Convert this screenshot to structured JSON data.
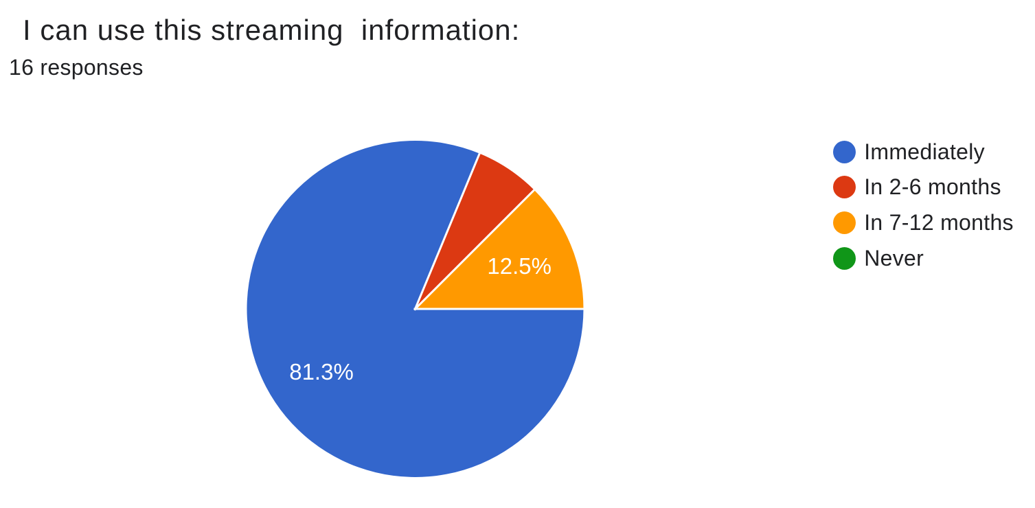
{
  "chart_data": {
    "type": "pie",
    "title": "I can use this streaming  information:",
    "subtitle": "16 responses",
    "total_responses": 16,
    "categories": [
      "Immediately",
      "In 2-6 months",
      "In 7-12 months",
      "Never"
    ],
    "values": [
      13,
      1,
      2,
      0
    ],
    "percents": [
      81.3,
      6.3,
      12.5,
      0
    ],
    "slice_labels": [
      "81.3%",
      "",
      "12.5%",
      ""
    ],
    "colors": [
      "#3366cc",
      "#dc3912",
      "#ff9900",
      "#109618"
    ],
    "start_angle_deg": 0,
    "direction": "clockwise",
    "legend_position": "right",
    "slice_label_color": "#ffffff",
    "separator_color": "#ffffff",
    "background_color": "#ffffff",
    "title_color": "#202124",
    "legend_text_color": "#202124"
  }
}
